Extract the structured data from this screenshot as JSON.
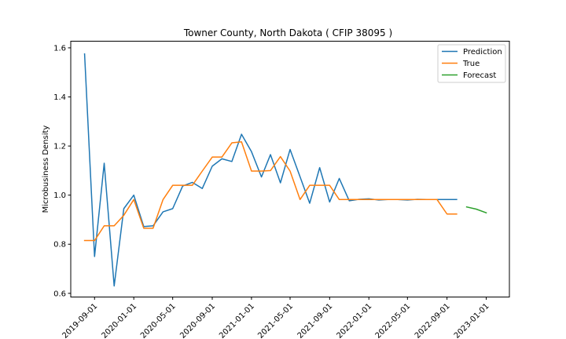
{
  "chart_data": {
    "type": "line",
    "title": "Towner County, North Dakota ( CFIP 38095 )",
    "xlabel": "",
    "ylabel": "Microbusiness Density",
    "x_dates": [
      "2019-08-01",
      "2019-09-01",
      "2019-10-01",
      "2019-11-01",
      "2019-12-01",
      "2020-01-01",
      "2020-02-01",
      "2020-03-01",
      "2020-04-01",
      "2020-05-01",
      "2020-06-01",
      "2020-07-01",
      "2020-08-01",
      "2020-09-01",
      "2020-10-01",
      "2020-11-01",
      "2020-12-01",
      "2021-01-01",
      "2021-02-01",
      "2021-03-01",
      "2021-04-01",
      "2021-05-01",
      "2021-06-01",
      "2021-07-01",
      "2021-08-01",
      "2021-09-01",
      "2021-10-01",
      "2021-11-01",
      "2021-12-01",
      "2022-01-01",
      "2022-02-01",
      "2022-03-01",
      "2022-04-01",
      "2022-05-01",
      "2022-06-01",
      "2022-07-01",
      "2022-08-01",
      "2022-09-01",
      "2022-10-01"
    ],
    "forecast_x_dates": [
      "2022-11-01",
      "2022-12-01",
      "2023-01-01"
    ],
    "series": [
      {
        "name": "Prediction",
        "color": "#1f77b4",
        "values": [
          1.575,
          0.75,
          1.13,
          0.63,
          0.945,
          1.0,
          0.872,
          0.875,
          0.932,
          0.945,
          1.037,
          1.052,
          1.027,
          1.118,
          1.148,
          1.137,
          1.248,
          1.177,
          1.074,
          1.165,
          1.05,
          1.186,
          1.075,
          0.967,
          1.112,
          0.972,
          1.068,
          0.977,
          0.983,
          0.985,
          0.98,
          0.982,
          0.982,
          0.98,
          0.983,
          0.982,
          0.982,
          0.982,
          0.982
        ]
      },
      {
        "name": "True",
        "color": "#ff7f0e",
        "values": [
          0.815,
          0.815,
          0.875,
          0.875,
          0.918,
          0.982,
          0.865,
          0.865,
          0.982,
          1.04,
          1.04,
          1.04,
          1.098,
          1.155,
          1.155,
          1.213,
          1.217,
          1.098,
          1.098,
          1.1,
          1.157,
          1.098,
          0.982,
          1.04,
          1.04,
          1.04,
          0.982,
          0.982,
          0.982,
          0.982,
          0.982,
          0.982,
          0.982,
          0.982,
          0.982,
          0.982,
          0.982,
          0.923,
          0.923
        ]
      },
      {
        "name": "Forecast",
        "color": "#2ca02c",
        "values": [
          0.952,
          0.943,
          0.928
        ]
      }
    ],
    "ylim": [
      0.585,
      1.627
    ],
    "yticks": [
      0.6,
      0.8,
      1.0,
      1.2,
      1.4,
      1.6
    ],
    "ytick_labels": [
      "0.6",
      "0.8",
      "1.0",
      "1.2",
      "1.4",
      "1.6"
    ],
    "xticks": [
      "2019-09-01",
      "2020-01-01",
      "2020-05-01",
      "2020-09-01",
      "2021-01-01",
      "2021-05-01",
      "2021-09-01",
      "2022-01-01",
      "2022-05-01",
      "2022-09-01",
      "2023-01-01"
    ],
    "xtick_labels": [
      "2019-09-01",
      "2020-01-01",
      "2020-05-01",
      "2020-09-01",
      "2021-01-01",
      "2021-05-01",
      "2021-09-01",
      "2022-01-01",
      "2022-05-01",
      "2022-09-01",
      "2023-01-01"
    ],
    "xlim": [
      "2019-06-19",
      "2023-03-14"
    ],
    "legend_position": "top-right",
    "grid": false
  }
}
